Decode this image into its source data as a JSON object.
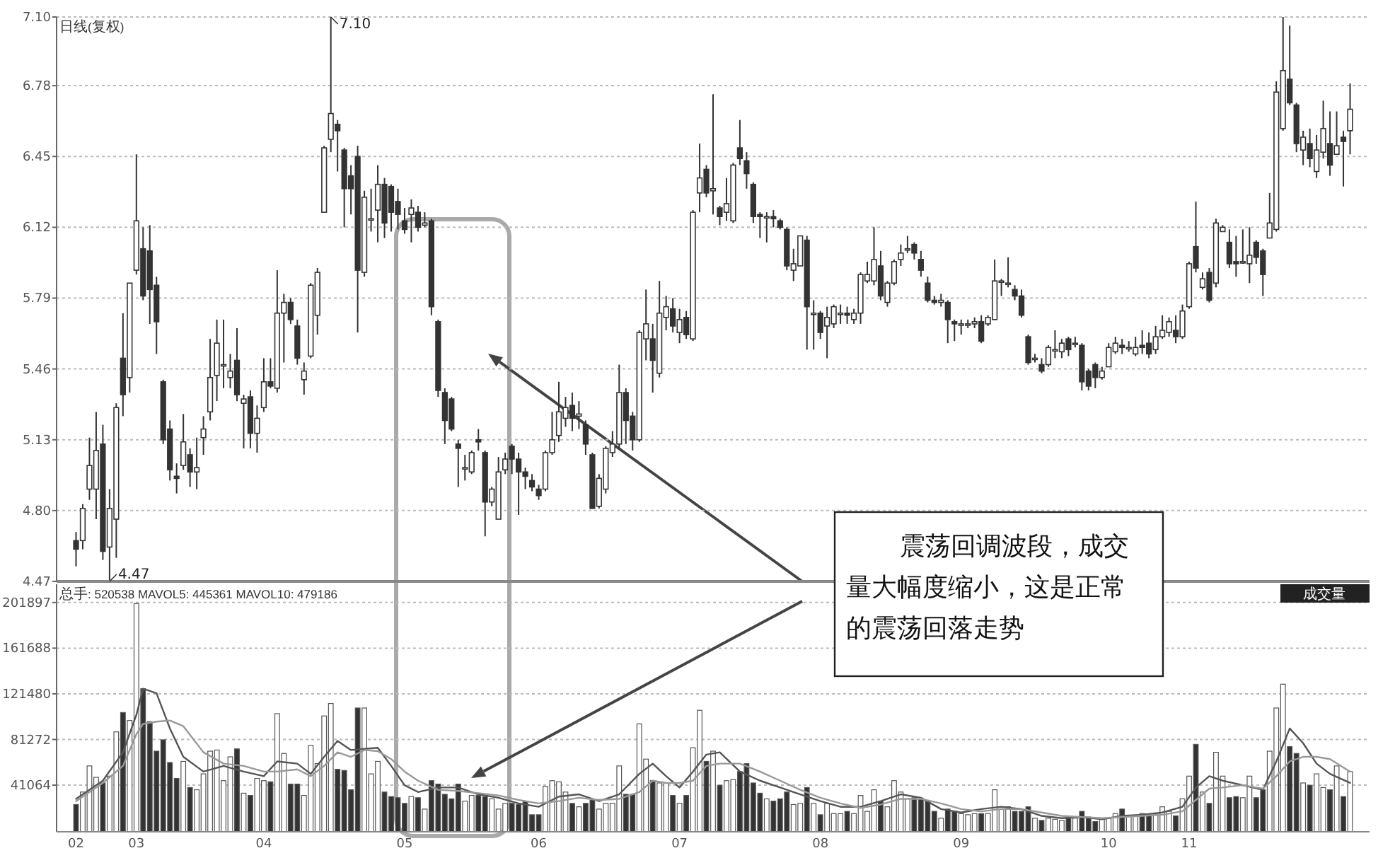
{
  "chart_data": [
    {
      "type": "candlestick",
      "title": "日线(复权)",
      "ylim": [
        4.47,
        7.1
      ],
      "yticks": [
        4.47,
        {
          "value": 4.8,
          "label": "4.80"
        },
        5.13,
        5.46,
        5.79,
        6.12,
        6.45,
        6.78,
        {
          "value": 7.1,
          "label": "7.10"
        }
      ],
      "grid": "y",
      "tick_labels": "y",
      "categories": [
        "02",
        null,
        null,
        null,
        null,
        null,
        null,
        null,
        null,
        "03",
        null,
        null,
        null,
        null,
        null,
        null,
        null,
        null,
        null,
        null,
        null,
        null,
        null,
        null,
        null,
        null,
        null,
        null,
        "04",
        null,
        null,
        null,
        null,
        null,
        null,
        null,
        null,
        null,
        null,
        null,
        null,
        null,
        null,
        null,
        null,
        null,
        null,
        null,
        null,
        "05",
        null,
        null,
        null,
        null,
        null,
        null,
        null,
        null,
        null,
        null,
        null,
        null,
        null,
        null,
        null,
        null,
        null,
        null,
        null,
        "06",
        null,
        null,
        null,
        null,
        null,
        null,
        null,
        null,
        null,
        null,
        null,
        null,
        null,
        null,
        null,
        null,
        null,
        null,
        null,
        null,
        "07",
        null,
        null,
        null,
        null,
        null,
        null,
        null,
        null,
        null,
        null,
        null,
        null,
        null,
        null,
        null,
        null,
        null,
        null,
        null,
        null,
        "08",
        null,
        null,
        null,
        null,
        null,
        null,
        null,
        null,
        null,
        null,
        null,
        null,
        null,
        null,
        null,
        null,
        null,
        null,
        null,
        null,
        "09",
        null,
        null,
        null,
        null,
        null,
        null,
        null,
        null,
        null,
        null,
        null,
        null,
        null,
        null,
        null,
        null,
        null,
        null,
        null,
        null,
        null,
        "10",
        null,
        null,
        null,
        null,
        null,
        null,
        null,
        null,
        null,
        null,
        null,
        "11",
        null,
        null,
        null,
        null,
        null,
        null,
        null,
        null,
        null,
        null,
        null,
        null,
        null,
        null,
        null,
        null,
        null,
        null,
        null,
        null,
        null,
        null,
        null,
        null
      ],
      "ohlc": [
        [
          4.66,
          4.7,
          4.54,
          4.62
        ],
        [
          4.66,
          4.83,
          4.62,
          4.81
        ],
        [
          4.9,
          5.14,
          4.85,
          5.01
        ],
        [
          4.9,
          5.26,
          4.76,
          5.08
        ],
        [
          5.11,
          5.2,
          4.57,
          4.61
        ],
        [
          4.63,
          4.9,
          4.47,
          4.81
        ],
        [
          4.76,
          5.3,
          4.58,
          5.28
        ],
        [
          5.51,
          5.72,
          5.24,
          5.34
        ],
        [
          5.42,
          5.86,
          5.35,
          5.86
        ],
        [
          5.92,
          6.46,
          5.9,
          6.15
        ],
        [
          6.02,
          6.12,
          5.78,
          5.8
        ],
        [
          6.01,
          6.13,
          5.67,
          5.83
        ],
        [
          5.85,
          5.89,
          5.53,
          5.68
        ],
        [
          5.4,
          5.41,
          5.11,
          5.13
        ],
        [
          5.18,
          5.22,
          4.94,
          4.99
        ],
        [
          4.96,
          5.02,
          4.88,
          4.95
        ],
        [
          5.01,
          5.25,
          4.99,
          5.12
        ],
        [
          5.06,
          5.09,
          4.91,
          4.98
        ],
        [
          4.98,
          5.14,
          4.9,
          5.0
        ],
        [
          5.14,
          5.24,
          5.06,
          5.18
        ],
        [
          5.26,
          5.6,
          5.22,
          5.42
        ],
        [
          5.43,
          5.69,
          5.31,
          5.58
        ],
        [
          5.48,
          5.69,
          5.37,
          5.48
        ],
        [
          5.42,
          5.53,
          5.37,
          5.45
        ],
        [
          5.5,
          5.65,
          5.31,
          5.34
        ],
        [
          5.3,
          5.34,
          5.09,
          5.32
        ],
        [
          5.33,
          5.36,
          5.09,
          5.16
        ],
        [
          5.16,
          5.29,
          5.07,
          5.23
        ],
        [
          5.28,
          5.51,
          5.26,
          5.4
        ],
        [
          5.4,
          5.51,
          5.37,
          5.38
        ],
        [
          5.37,
          5.92,
          5.35,
          5.72
        ],
        [
          5.72,
          5.81,
          5.49,
          5.77
        ],
        [
          5.77,
          5.79,
          5.67,
          5.69
        ],
        [
          5.66,
          5.69,
          5.48,
          5.51
        ],
        [
          5.41,
          5.49,
          5.34,
          5.45
        ],
        [
          5.52,
          5.86,
          5.51,
          5.85
        ],
        [
          5.71,
          5.93,
          5.62,
          5.91
        ],
        [
          6.19,
          6.5,
          6.19,
          6.49
        ],
        [
          6.53,
          7.1,
          6.47,
          6.65
        ],
        [
          6.6,
          6.62,
          6.38,
          6.57
        ],
        [
          6.48,
          6.49,
          6.12,
          6.3
        ],
        [
          6.36,
          6.41,
          6.18,
          6.3
        ],
        [
          6.45,
          6.5,
          5.63,
          5.92
        ],
        [
          5.91,
          6.29,
          5.89,
          6.26
        ],
        [
          6.16,
          6.3,
          6.1,
          6.16
        ],
        [
          6.2,
          6.41,
          6.05,
          6.32
        ],
        [
          6.32,
          6.35,
          6.07,
          6.14
        ],
        [
          6.31,
          6.32,
          6.1,
          6.19
        ],
        [
          6.24,
          6.3,
          6.11,
          6.18
        ],
        [
          6.15,
          6.21,
          6.09,
          6.11
        ],
        [
          6.18,
          6.25,
          6.05,
          6.21
        ],
        [
          6.19,
          6.22,
          6.1,
          6.12
        ],
        [
          6.13,
          6.19,
          6.12,
          6.14
        ],
        [
          6.15,
          6.16,
          5.71,
          5.75
        ],
        [
          5.68,
          5.69,
          5.33,
          5.36
        ],
        [
          5.35,
          5.37,
          5.11,
          5.22
        ],
        [
          5.32,
          5.33,
          5.17,
          5.18
        ],
        [
          5.11,
          5.13,
          4.91,
          5.09
        ],
        [
          5.0,
          5.06,
          4.94,
          5.0
        ],
        [
          4.98,
          5.08,
          4.97,
          5.07
        ],
        [
          5.13,
          5.18,
          5.08,
          5.12
        ],
        [
          5.07,
          5.08,
          4.68,
          4.84
        ],
        [
          4.84,
          4.91,
          4.82,
          4.9
        ],
        [
          4.76,
          5.05,
          4.76,
          4.98
        ],
        [
          4.99,
          5.07,
          4.97,
          5.04
        ],
        [
          5.1,
          5.11,
          4.97,
          5.04
        ],
        [
          5.04,
          5.07,
          4.78,
          4.98
        ],
        [
          4.98,
          5.0,
          4.9,
          4.96
        ],
        [
          4.94,
          4.97,
          4.89,
          4.91
        ],
        [
          4.9,
          4.92,
          4.85,
          4.87
        ],
        [
          4.9,
          5.08,
          4.89,
          5.07
        ],
        [
          5.07,
          5.26,
          5.06,
          5.13
        ],
        [
          5.15,
          5.4,
          5.12,
          5.26
        ],
        [
          5.23,
          5.33,
          5.19,
          5.28
        ],
        [
          5.29,
          5.35,
          5.17,
          5.23
        ],
        [
          5.24,
          5.31,
          5.18,
          5.25
        ],
        [
          5.2,
          5.22,
          5.06,
          5.11
        ],
        [
          5.06,
          5.07,
          4.81,
          4.81
        ],
        [
          4.82,
          4.97,
          4.81,
          4.95
        ],
        [
          4.9,
          5.1,
          4.88,
          5.09
        ],
        [
          5.07,
          5.17,
          5.05,
          5.11
        ],
        [
          5.11,
          5.48,
          5.09,
          5.35
        ],
        [
          5.35,
          5.37,
          5.11,
          5.22
        ],
        [
          5.24,
          5.26,
          5.08,
          5.13
        ],
        [
          5.13,
          5.64,
          5.12,
          5.63
        ],
        [
          5.6,
          5.83,
          5.5,
          5.67
        ],
        [
          5.6,
          5.67,
          5.35,
          5.5
        ],
        [
          5.44,
          5.87,
          5.42,
          5.72
        ],
        [
          5.7,
          5.8,
          5.64,
          5.75
        ],
        [
          5.74,
          5.79,
          5.63,
          5.66
        ],
        [
          5.63,
          5.74,
          5.58,
          5.69
        ],
        [
          5.7,
          5.73,
          5.6,
          5.62
        ],
        [
          5.6,
          6.2,
          5.59,
          6.19
        ],
        [
          6.28,
          6.51,
          6.19,
          6.35
        ],
        [
          6.39,
          6.41,
          6.26,
          6.28
        ],
        [
          6.29,
          6.74,
          6.18,
          6.3
        ],
        [
          6.21,
          6.22,
          6.13,
          6.17
        ],
        [
          6.19,
          6.35,
          6.15,
          6.23
        ],
        [
          6.15,
          6.42,
          6.14,
          6.41
        ],
        [
          6.49,
          6.62,
          6.41,
          6.44
        ],
        [
          6.43,
          6.47,
          6.3,
          6.37
        ],
        [
          6.32,
          6.33,
          6.14,
          6.17
        ],
        [
          6.18,
          6.19,
          6.07,
          6.17
        ],
        [
          6.17,
          6.19,
          6.05,
          6.17
        ],
        [
          6.17,
          6.2,
          6.12,
          6.16
        ],
        [
          6.15,
          6.16,
          6.11,
          6.12
        ],
        [
          6.11,
          6.12,
          5.92,
          5.94
        ],
        [
          5.92,
          6.02,
          5.87,
          5.95
        ],
        [
          5.94,
          6.08,
          5.94,
          6.08
        ],
        [
          6.06,
          6.08,
          5.55,
          5.75
        ],
        [
          5.72,
          5.78,
          5.55,
          5.72
        ],
        [
          5.72,
          5.73,
          5.6,
          5.63
        ],
        [
          5.66,
          5.75,
          5.51,
          5.7
        ],
        [
          5.67,
          5.76,
          5.65,
          5.75
        ],
        [
          5.72,
          5.76,
          5.67,
          5.72
        ],
        [
          5.72,
          5.75,
          5.67,
          5.71
        ],
        [
          5.69,
          5.74,
          5.67,
          5.72
        ],
        [
          5.72,
          5.91,
          5.67,
          5.9
        ],
        [
          5.87,
          5.96,
          5.86,
          5.9
        ],
        [
          5.87,
          6.12,
          5.85,
          5.97
        ],
        [
          5.94,
          6.01,
          5.78,
          5.8
        ],
        [
          5.77,
          5.87,
          5.75,
          5.86
        ],
        [
          5.86,
          5.97,
          5.85,
          5.96
        ],
        [
          5.97,
          6.04,
          5.94,
          6.0
        ],
        [
          6.02,
          6.08,
          6.0,
          6.02
        ],
        [
          6.04,
          6.05,
          5.97,
          6.0
        ],
        [
          5.97,
          6.01,
          5.89,
          5.92
        ],
        [
          5.86,
          5.89,
          5.77,
          5.78
        ],
        [
          5.78,
          5.8,
          5.76,
          5.77
        ],
        [
          5.77,
          5.81,
          5.75,
          5.78
        ],
        [
          5.77,
          5.78,
          5.58,
          5.69
        ],
        [
          5.68,
          5.69,
          5.59,
          5.67
        ],
        [
          5.67,
          5.69,
          5.62,
          5.67
        ],
        [
          5.67,
          5.69,
          5.65,
          5.67
        ],
        [
          5.67,
          5.7,
          5.65,
          5.68
        ],
        [
          5.68,
          5.71,
          5.58,
          5.59
        ],
        [
          5.67,
          5.71,
          5.66,
          5.7
        ],
        [
          5.69,
          5.97,
          5.69,
          5.87
        ],
        [
          5.87,
          5.88,
          5.8,
          5.87
        ],
        [
          5.86,
          5.98,
          5.84,
          5.86
        ],
        [
          5.83,
          5.85,
          5.78,
          5.8
        ],
        [
          5.8,
          5.83,
          5.7,
          5.71
        ],
        [
          5.61,
          5.62,
          5.48,
          5.49
        ],
        [
          5.51,
          5.53,
          5.49,
          5.51
        ],
        [
          5.48,
          5.51,
          5.44,
          5.45
        ],
        [
          5.48,
          5.57,
          5.47,
          5.56
        ],
        [
          5.55,
          5.64,
          5.51,
          5.55
        ],
        [
          5.54,
          5.6,
          5.51,
          5.58
        ],
        [
          5.6,
          5.61,
          5.52,
          5.55
        ],
        [
          5.58,
          5.61,
          5.56,
          5.58
        ],
        [
          5.57,
          5.58,
          5.36,
          5.4
        ],
        [
          5.45,
          5.46,
          5.36,
          5.38
        ],
        [
          5.48,
          5.49,
          5.37,
          5.42
        ],
        [
          5.42,
          5.47,
          5.41,
          5.45
        ],
        [
          5.47,
          5.58,
          5.47,
          5.56
        ],
        [
          5.54,
          5.61,
          5.53,
          5.58
        ],
        [
          5.57,
          5.6,
          5.53,
          5.56
        ],
        [
          5.56,
          5.59,
          5.54,
          5.56
        ],
        [
          5.53,
          5.61,
          5.52,
          5.56
        ],
        [
          5.57,
          5.64,
          5.53,
          5.56
        ],
        [
          5.58,
          5.63,
          5.51,
          5.53
        ],
        [
          5.55,
          5.66,
          5.53,
          5.61
        ],
        [
          5.61,
          5.71,
          5.6,
          5.64
        ],
        [
          5.63,
          5.7,
          5.61,
          5.68
        ],
        [
          5.64,
          5.71,
          5.58,
          5.61
        ],
        [
          5.61,
          5.76,
          5.6,
          5.73
        ],
        [
          5.75,
          5.96,
          5.74,
          5.95
        ],
        [
          6.03,
          6.24,
          5.91,
          5.93
        ],
        [
          5.84,
          5.91,
          5.83,
          5.88
        ],
        [
          5.91,
          5.93,
          5.77,
          5.78
        ],
        [
          5.86,
          6.16,
          5.84,
          6.14
        ],
        [
          6.1,
          6.13,
          6.1,
          6.12
        ],
        [
          6.05,
          6.11,
          5.93,
          5.95
        ],
        [
          5.96,
          6.08,
          5.89,
          5.95
        ],
        [
          5.96,
          6.11,
          5.95,
          5.96
        ],
        [
          5.95,
          6.12,
          5.86,
          5.99
        ],
        [
          6.05,
          6.06,
          5.95,
          5.98
        ],
        [
          6.01,
          6.02,
          5.8,
          5.9
        ],
        [
          6.07,
          6.28,
          6.07,
          6.14
        ],
        [
          6.11,
          6.8,
          6.1,
          6.75
        ],
        [
          6.58,
          7.1,
          6.57,
          6.85
        ],
        [
          6.81,
          7.06,
          6.69,
          6.7
        ],
        [
          6.69,
          6.7,
          6.47,
          6.51
        ],
        [
          6.48,
          6.57,
          6.41,
          6.54
        ],
        [
          6.51,
          6.58,
          6.4,
          6.44
        ],
        [
          6.38,
          6.55,
          6.35,
          6.48
        ],
        [
          6.47,
          6.71,
          6.44,
          6.58
        ],
        [
          6.51,
          6.66,
          6.36,
          6.41
        ],
        [
          6.46,
          6.66,
          6.46,
          6.5
        ],
        [
          6.54,
          6.57,
          6.31,
          6.52
        ],
        [
          6.57,
          6.79,
          6.46,
          6.67
        ]
      ],
      "annotations": [
        "7.10",
        "4.47",
        "震荡回调波段，成交量大幅度缩小，这是正常的震荡回落走势"
      ]
    },
    {
      "type": "bar",
      "title": "总手: 520538 MAVOL5: 445361 MAVOL10: 479186",
      "ylim": [
        0,
        218000
      ],
      "yticks": [
        41064,
        81272,
        121480,
        161688,
        201897
      ],
      "grid": "y",
      "categories": [
        "02",
        null,
        null,
        null,
        null,
        null,
        null,
        null,
        null,
        "03",
        null,
        null,
        null,
        null,
        null,
        null,
        null,
        null,
        null,
        null,
        null,
        null,
        null,
        null,
        null,
        null,
        null,
        null,
        "04",
        null,
        null,
        null,
        null,
        null,
        null,
        null,
        null,
        null,
        null,
        null,
        null,
        null,
        null,
        null,
        null,
        null,
        null,
        null,
        null,
        "05",
        null,
        null,
        null,
        null,
        null,
        null,
        null,
        null,
        null,
        null,
        null,
        null,
        null,
        null,
        null,
        null,
        null,
        null,
        null,
        "06",
        null,
        null,
        null,
        null,
        null,
        null,
        null,
        null,
        null,
        null,
        null,
        null,
        null,
        null,
        null,
        null,
        null,
        null,
        null,
        null,
        "07",
        null,
        null,
        null,
        null,
        null,
        null,
        null,
        null,
        null,
        null,
        null,
        null,
        null,
        null,
        null,
        null,
        null,
        null,
        null,
        null,
        "08",
        null,
        null,
        null,
        null,
        null,
        null,
        null,
        null,
        null,
        null,
        null,
        null,
        null,
        null,
        null,
        null,
        null,
        null,
        null,
        null,
        "09",
        null,
        null,
        null,
        null,
        null,
        null,
        null,
        null,
        null,
        null,
        null,
        null,
        null,
        null,
        null,
        null,
        null,
        null,
        null,
        null,
        null,
        "10",
        null,
        null,
        null,
        null,
        null,
        null,
        null,
        null,
        null,
        null,
        null,
        "11",
        null,
        null,
        null,
        null,
        null,
        null,
        null,
        null,
        null,
        null,
        null,
        null,
        null,
        null,
        null,
        null,
        null,
        null,
        null,
        null,
        null,
        null,
        null,
        null
      ],
      "series": [
        {
          "values": [
            24000,
            35000,
            58000,
            48000,
            43000,
            49000,
            88000,
            105000,
            98000,
            201000,
            126000,
            97000,
            71000,
            81000,
            61000,
            47000,
            62000,
            39000,
            37000,
            51000,
            71000,
            72000,
            45000,
            66000,
            73000,
            34000,
            32000,
            47000,
            45000,
            44000,
            104000,
            69000,
            42000,
            42000,
            32000,
            76000,
            60000,
            102000,
            113000,
            55000,
            54000,
            37000,
            109000,
            109000,
            51000,
            62000,
            35000,
            31000,
            30000,
            25000,
            31000,
            30000,
            20000,
            45000,
            42000,
            33000,
            29000,
            42000,
            27000,
            32000,
            32000,
            31000,
            29000,
            20000,
            25000,
            25000,
            24000,
            27000,
            15000,
            15000,
            40000,
            45000,
            44000,
            35000,
            25000,
            22000,
            25000,
            28000,
            20000,
            25000,
            25000,
            58000,
            33000,
            33000,
            95000,
            64000,
            45000,
            43000,
            43000,
            32000,
            25000,
            32000,
            74000,
            107000,
            62000,
            71000,
            41000,
            45000,
            46000,
            53000,
            60000,
            43000,
            34000,
            29000,
            27000,
            29000,
            35000,
            24000,
            25000,
            39000,
            25000,
            15000,
            25000,
            16000,
            16000,
            18000,
            16000,
            32000,
            18000,
            37000,
            27000,
            22000,
            45000,
            35000,
            29000,
            30000,
            29000,
            27000,
            18000,
            12000,
            20000,
            18000,
            16000,
            15000,
            16000,
            16000,
            16000,
            37000,
            20000,
            22000,
            18000,
            18000,
            22000,
            12000,
            10000,
            12000,
            11000,
            10000,
            13000,
            12000,
            18000,
            13000,
            9000,
            11000,
            12000,
            16000,
            20000,
            14000,
            14000,
            16000,
            15000,
            15000,
            22000,
            18000,
            14000,
            29000,
            49000,
            77000,
            35000,
            25000,
            70000,
            49000,
            30000,
            31000,
            30000,
            49000,
            30000,
            37000,
            71000,
            109000,
            130000,
            75000,
            69000,
            43000,
            41000,
            51000,
            39000,
            37000,
            58000,
            31000,
            53000
          ],
          "colors": [
            "#333333",
            "#ffffff",
            "#ffffff",
            "#ffffff",
            "#333333",
            "#ffffff",
            "#ffffff",
            "#333333",
            "#ffffff",
            "#ffffff",
            "#333333",
            "#333333",
            "#333333",
            "#333333",
            "#333333",
            "#333333",
            "#ffffff",
            "#333333",
            "#ffffff",
            "#ffffff",
            "#ffffff",
            "#ffffff",
            "#ffffff",
            "#ffffff",
            "#333333",
            "#ffffff",
            "#333333",
            "#ffffff",
            "#ffffff",
            "#333333",
            "#ffffff",
            "#ffffff",
            "#333333",
            "#333333",
            "#ffffff",
            "#ffffff",
            "#ffffff",
            "#ffffff",
            "#ffffff",
            "#333333",
            "#333333",
            "#333333",
            "#333333",
            "#ffffff",
            "#ffffff",
            "#ffffff",
            "#333333",
            "#333333",
            "#333333",
            "#333333",
            "#ffffff",
            "#333333",
            "#ffffff",
            "#333333",
            "#333333",
            "#333333",
            "#333333",
            "#333333",
            "#ffffff",
            "#ffffff",
            "#333333",
            "#333333",
            "#ffffff",
            "#ffffff",
            "#ffffff",
            "#333333",
            "#333333",
            "#333333",
            "#333333",
            "#333333",
            "#ffffff",
            "#ffffff",
            "#ffffff",
            "#ffffff",
            "#333333",
            "#ffffff",
            "#333333",
            "#333333",
            "#ffffff",
            "#ffffff",
            "#ffffff",
            "#ffffff",
            "#333333",
            "#333333",
            "#ffffff",
            "#ffffff",
            "#333333",
            "#ffffff",
            "#ffffff",
            "#333333",
            "#ffffff",
            "#333333",
            "#ffffff",
            "#ffffff",
            "#333333",
            "#ffffff",
            "#333333",
            "#ffffff",
            "#ffffff",
            "#333333",
            "#333333",
            "#333333",
            "#333333",
            "#ffffff",
            "#333333",
            "#333333",
            "#333333",
            "#ffffff",
            "#ffffff",
            "#333333",
            "#ffffff",
            "#333333",
            "#ffffff",
            "#ffffff",
            "#ffffff",
            "#333333",
            "#ffffff",
            "#ffffff",
            "#ffffff",
            "#ffffff",
            "#333333",
            "#ffffff",
            "#ffffff",
            "#ffffff",
            "#ffffff",
            "#333333",
            "#333333",
            "#333333",
            "#333333",
            "#ffffff",
            "#333333",
            "#333333",
            "#ffffff",
            "#ffffff",
            "#ffffff",
            "#333333",
            "#ffffff",
            "#ffffff",
            "#ffffff",
            "#ffffff",
            "#333333",
            "#333333",
            "#333333",
            "#ffffff",
            "#333333",
            "#ffffff",
            "#ffffff",
            "#ffffff",
            "#333333",
            "#ffffff",
            "#333333",
            "#333333",
            "#333333",
            "#ffffff",
            "#ffffff",
            "#ffffff",
            "#333333",
            "#ffffff",
            "#ffffff",
            "#333333",
            "#333333",
            "#ffffff",
            "#ffffff",
            "#ffffff",
            "#333333",
            "#ffffff",
            "#ffffff",
            "#333333",
            "#ffffff",
            "#333333",
            "#ffffff",
            "#ffffff",
            "#333333",
            "#333333",
            "#ffffff",
            "#ffffff",
            "#333333",
            "#333333",
            "#ffffff",
            "#ffffff",
            "#ffffff",
            "#333333",
            "#333333",
            "#ffffff",
            "#333333",
            "#ffffff",
            "#ffffff",
            "#333333",
            "#ffffff",
            "#333333",
            "#ffffff"
          ]
        },
        {
          "type": "line",
          "color": "#555555",
          "values": [
            29000,
            null,
            null,
            null,
            45000,
            null,
            null,
            70000,
            null,
            103000,
            126000,
            null,
            122000,
            null,
            91000,
            null,
            66000,
            null,
            null,
            53000,
            null,
            null,
            58000,
            null,
            null,
            53000,
            null,
            null,
            49000,
            null,
            62000,
            null,
            null,
            60000,
            null,
            51000,
            null,
            66000,
            null,
            80000,
            null,
            72000,
            null,
            73000,
            null,
            74000,
            null,
            58000,
            null,
            41000,
            null,
            35000,
            null,
            null,
            39000,
            null,
            null,
            39000,
            null,
            null,
            33000,
            null,
            null,
            30000,
            null,
            null,
            25000,
            null,
            null,
            22000,
            null,
            null,
            31000,
            null,
            null,
            33000,
            null,
            null,
            27000,
            null,
            null,
            33000,
            null,
            null,
            51000,
            null,
            60000,
            null,
            49000,
            null,
            39000,
            null,
            53000,
            null,
            68000,
            null,
            70000,
            null,
            null,
            53000,
            null,
            null,
            45000,
            null,
            null,
            39000,
            null,
            null,
            33000,
            null,
            null,
            27000,
            null,
            null,
            22000,
            null,
            null,
            22000,
            null,
            null,
            27000,
            null,
            null,
            33000,
            null,
            null,
            30000,
            null,
            null,
            20000,
            null,
            null,
            17000,
            null,
            null,
            20000,
            null,
            null,
            22000,
            null,
            null,
            20000,
            null,
            null,
            14000,
            null,
            null,
            12000,
            null,
            null,
            13000,
            null,
            null,
            11000,
            null,
            null,
            14000,
            null,
            null,
            15000,
            null,
            null,
            17000,
            null,
            null,
            22000,
            null,
            39000,
            null,
            49000,
            null,
            45000,
            null,
            null,
            41000,
            null,
            null,
            37000,
            null,
            62000,
            null,
            91000,
            null,
            78000,
            null,
            60000,
            null,
            51000,
            null,
            null,
            43000
          ]
        },
        {
          "type": "line",
          "color": "#999999",
          "values": [
            27000,
            null,
            null,
            null,
            43000,
            null,
            null,
            58000,
            null,
            86000,
            95000,
            null,
            97000,
            null,
            98000,
            null,
            93000,
            null,
            null,
            70000,
            null,
            null,
            60000,
            null,
            null,
            58000,
            null,
            null,
            53000,
            null,
            53000,
            null,
            null,
            55000,
            null,
            49000,
            null,
            58000,
            null,
            70000,
            null,
            66000,
            null,
            72000,
            null,
            71000,
            null,
            64000,
            null,
            53000,
            null,
            45000,
            null,
            null,
            37000,
            null,
            null,
            36000,
            null,
            null,
            34000,
            null,
            null,
            32000,
            null,
            null,
            28000,
            null,
            null,
            25000,
            null,
            null,
            27000,
            null,
            null,
            30000,
            null,
            null,
            28000,
            null,
            null,
            29000,
            null,
            null,
            35000,
            null,
            45000,
            null,
            43000,
            null,
            43000,
            null,
            45000,
            null,
            58000,
            null,
            60000,
            null,
            null,
            60000,
            null,
            null,
            53000,
            null,
            null,
            45000,
            null,
            null,
            37000,
            null,
            null,
            30000,
            null,
            null,
            25000,
            null,
            null,
            21000,
            null,
            null,
            24000,
            null,
            null,
            29000,
            null,
            null,
            29000,
            null,
            null,
            25000,
            null,
            null,
            20000,
            null,
            null,
            18000,
            null,
            null,
            20000,
            null,
            null,
            20000,
            null,
            null,
            17000,
            null,
            null,
            14000,
            null,
            null,
            13000,
            null,
            null,
            12000,
            null,
            null,
            13000,
            null,
            null,
            14000,
            null,
            null,
            15000,
            null,
            null,
            18000,
            null,
            28000,
            null,
            38000,
            null,
            39000,
            null,
            null,
            41000,
            null,
            null,
            38000,
            null,
            49000,
            null,
            62000,
            null,
            66000,
            null,
            66000,
            null,
            64000,
            null,
            null,
            53000
          ]
        }
      ],
      "annotations": [
        "成交量"
      ]
    }
  ]
}
